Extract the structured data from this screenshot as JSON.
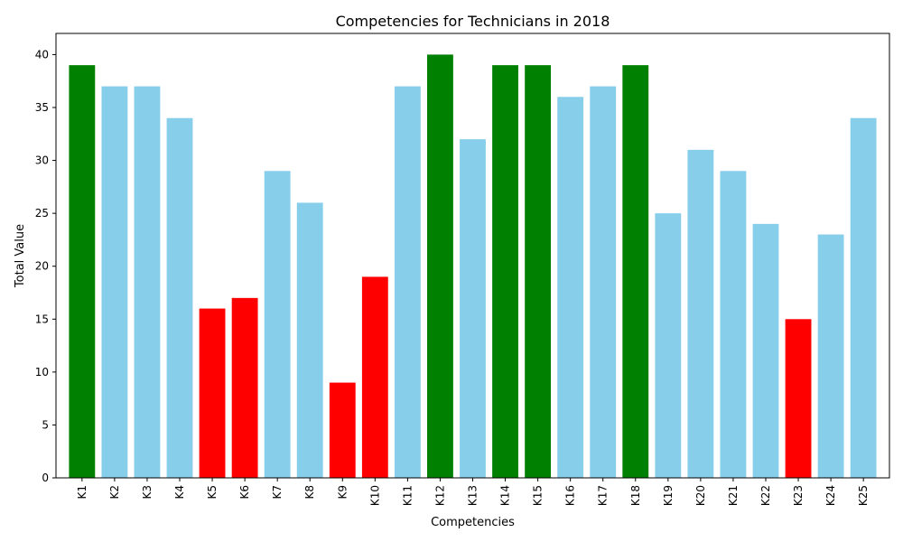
{
  "chart_data": {
    "type": "bar",
    "title": "Competencies for Technicians in 2018",
    "xlabel": "Competencies",
    "ylabel": "Total Value",
    "categories": [
      "K1",
      "K2",
      "K3",
      "K4",
      "K5",
      "K6",
      "K7",
      "K8",
      "K9",
      "K10",
      "K11",
      "K12",
      "K13",
      "K14",
      "K15",
      "K16",
      "K17",
      "K18",
      "K19",
      "K20",
      "K21",
      "K22",
      "K23",
      "K24",
      "K25"
    ],
    "values": [
      39,
      37,
      37,
      34,
      16,
      17,
      29,
      26,
      9,
      19,
      37,
      40,
      32,
      39,
      39,
      36,
      37,
      39,
      25,
      31,
      29,
      24,
      15,
      23,
      34
    ],
    "bar_colors": [
      "#008000",
      "#87ceeb",
      "#87ceeb",
      "#87ceeb",
      "#ff0000",
      "#ff0000",
      "#87ceeb",
      "#87ceeb",
      "#ff0000",
      "#ff0000",
      "#87ceeb",
      "#008000",
      "#87ceeb",
      "#008000",
      "#008000",
      "#87ceeb",
      "#87ceeb",
      "#008000",
      "#87ceeb",
      "#87ceeb",
      "#87ceeb",
      "#87ceeb",
      "#ff0000",
      "#87ceeb",
      "#87ceeb"
    ],
    "ylim": [
      0,
      42
    ],
    "yticks": [
      0,
      5,
      10,
      15,
      20,
      25,
      30,
      35,
      40
    ],
    "grid": false
  }
}
